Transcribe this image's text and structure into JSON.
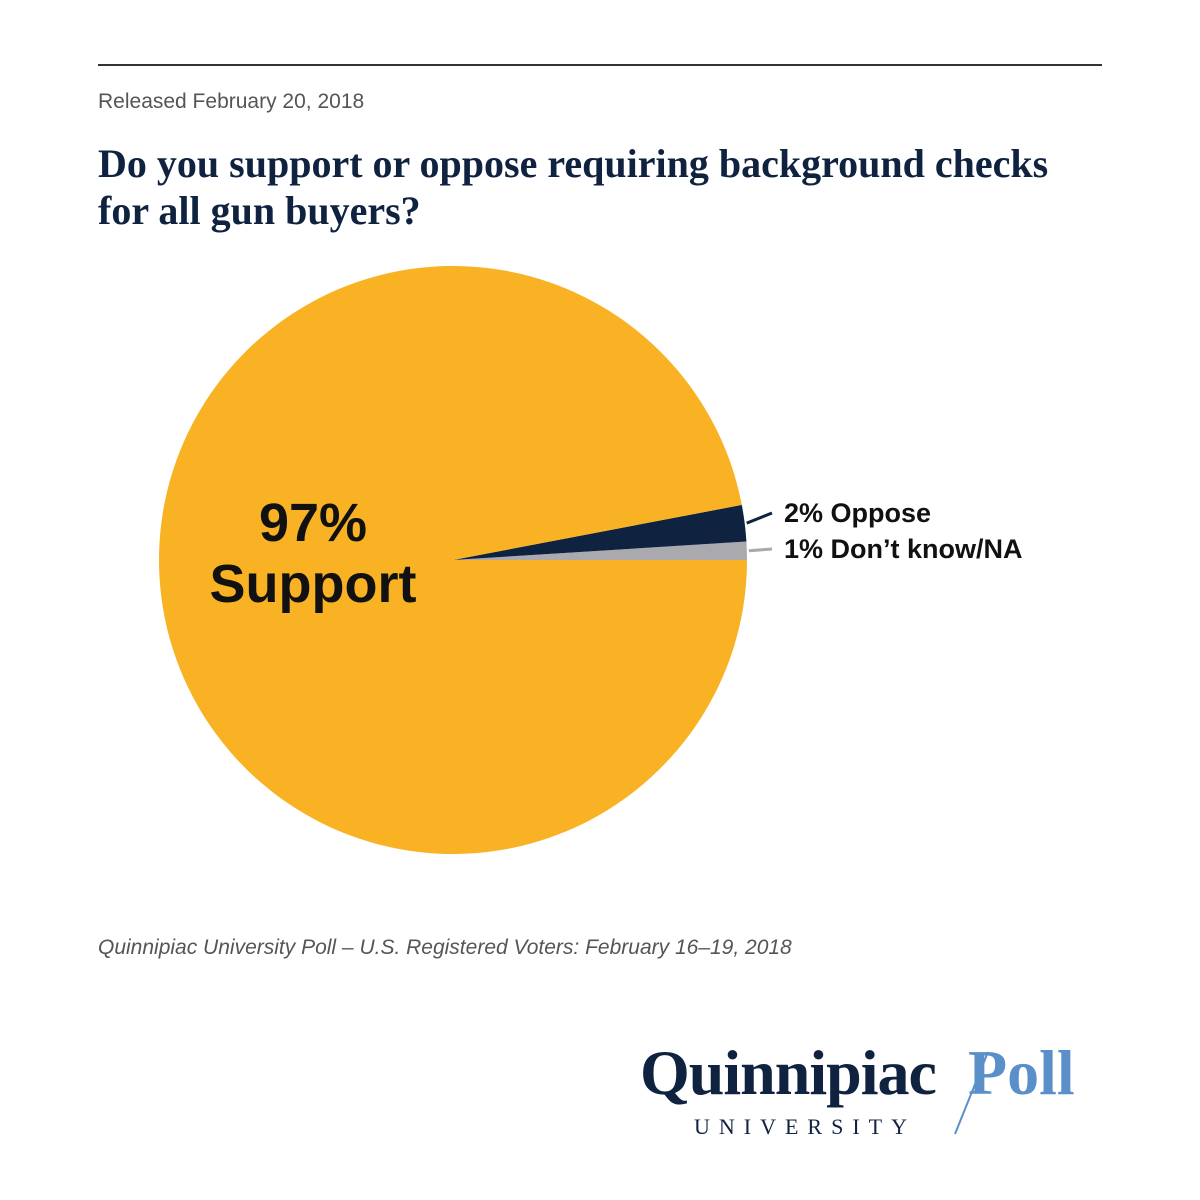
{
  "header": {
    "released": "Released February 20, 2018",
    "title": "Do you support or oppose requiring background checks for all gun buyers?"
  },
  "chart_data": {
    "type": "pie",
    "slices": [
      {
        "label": "Support",
        "value": 97,
        "label_text": "97%\nSupport",
        "color": "#f9b224"
      },
      {
        "label": "Oppose",
        "value": 2,
        "label_text": "2% Oppose",
        "color": "#0f2340"
      },
      {
        "label": "Don’t know/NA",
        "value": 1,
        "label_text": "1% Don’t know/NA",
        "color": "#a9a9ae"
      }
    ]
  },
  "footer": {
    "source": "Quinnipiac University Poll – U.S. Registered Voters: February 16–19, 2018"
  },
  "logo": {
    "name": "Quinnipiac",
    "poll": "Poll",
    "sub": "UNIVERSITY",
    "brand_color": "#0f2340",
    "accent_color": "#5b8fc9"
  }
}
